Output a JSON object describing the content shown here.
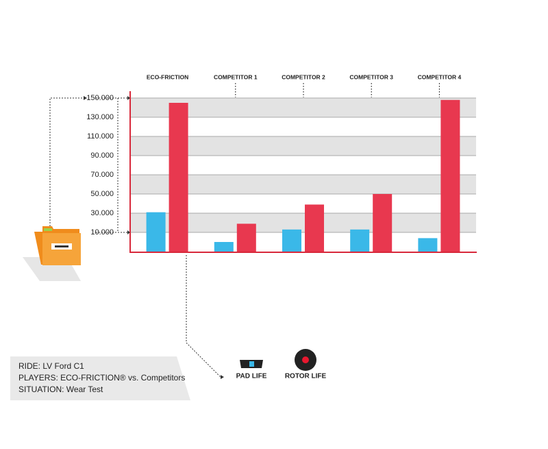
{
  "chart_data": {
    "type": "bar",
    "categories": [
      "ECO-FRICTION",
      "COMPETITOR 1",
      "COMPETITOR 2",
      "COMPETITOR 3",
      "COMPETITOR 4"
    ],
    "series": [
      {
        "name": "PAD LIFE",
        "color": "#3ab8e8",
        "values": [
          31000,
          0,
          13000,
          13000,
          4000
        ]
      },
      {
        "name": "ROTOR LIFE",
        "color": "#e8384f",
        "values": [
          145000,
          19000,
          39000,
          50000,
          148000
        ]
      }
    ],
    "ylim": [
      -10000,
      150000
    ],
    "yticks": [
      {
        "value": 150000,
        "label": "150.000"
      },
      {
        "value": 130000,
        "label": "130.000"
      },
      {
        "value": 110000,
        "label": "110.000"
      },
      {
        "value": 90000,
        "label": "90.000"
      },
      {
        "value": 70000,
        "label": "70.000"
      },
      {
        "value": 50000,
        "label": "50.000"
      },
      {
        "value": 30000,
        "label": "30.000"
      },
      {
        "value": 10000,
        "label": "10.000"
      }
    ],
    "grid": true
  },
  "info": {
    "lines": [
      "RIDE: LV Ford C1",
      "PLAYERS: ECO-FRICTION® vs. Competitors",
      "SITUATION: Wear Test"
    ]
  }
}
